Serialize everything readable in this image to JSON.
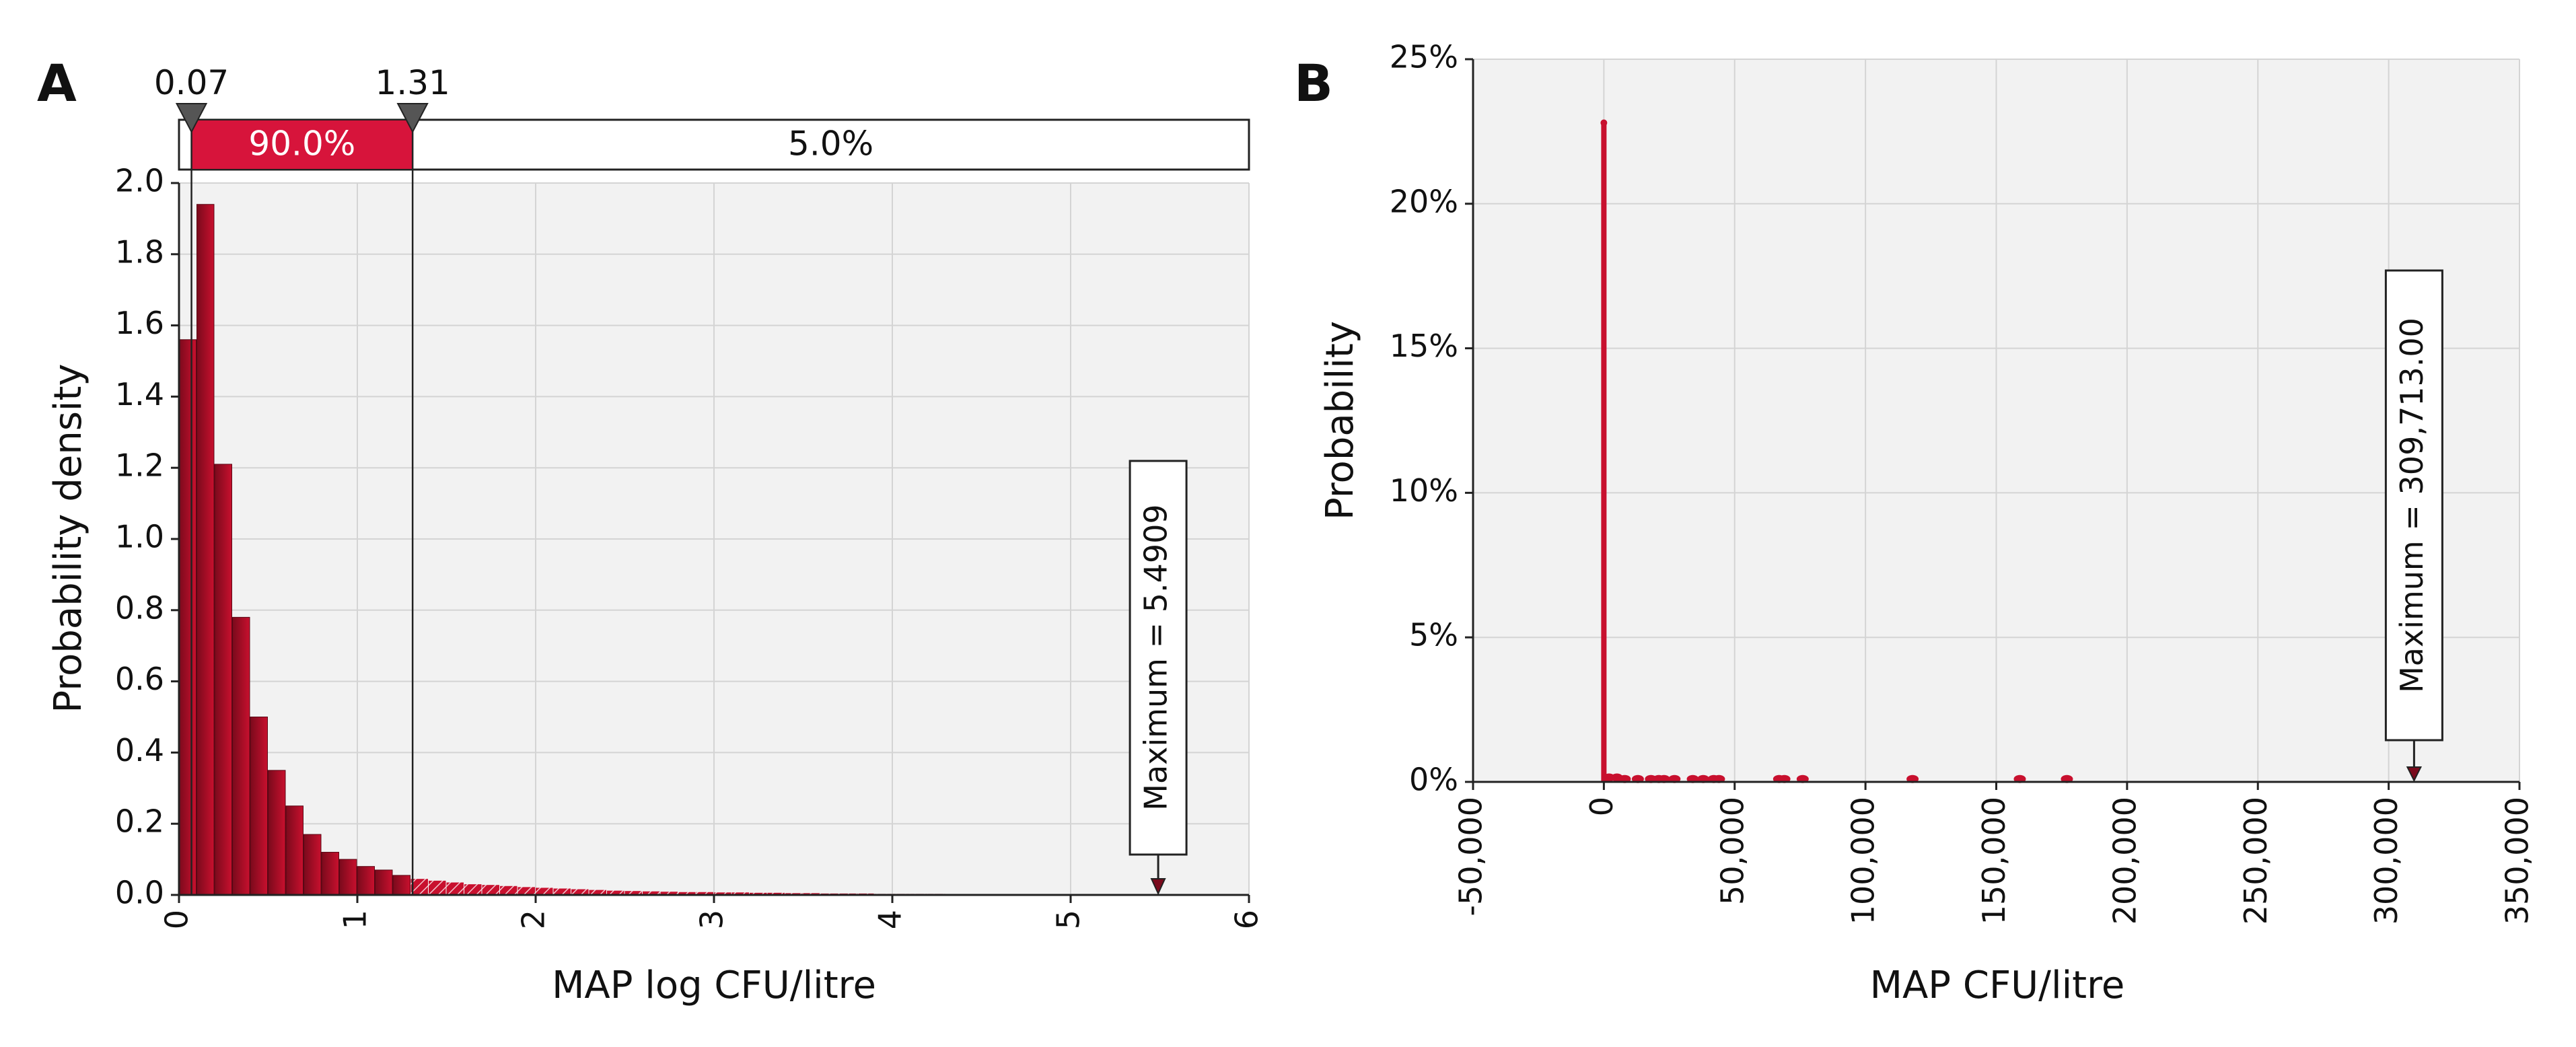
{
  "colors": {
    "bar_fill": "#c8102e",
    "bar_dark": "#7a0a1c",
    "plot_bg": "#f2f2f2",
    "grid": "#d4d4d4",
    "band_red": "#d7143b",
    "marker": "#555555"
  },
  "chart_data": [
    {
      "panel_label": "A",
      "type": "bar",
      "subtype": "histogram",
      "xlabel": "MAP log CFU/litre",
      "ylabel": "Probability density",
      "xlim": [
        0,
        6
      ],
      "ylim": [
        0,
        2.0
      ],
      "grid": true,
      "xticks": [
        "0",
        "1",
        "2",
        "3",
        "4",
        "5",
        "6"
      ],
      "yticks": [
        "0.0",
        "0.2",
        "0.4",
        "0.6",
        "0.8",
        "1.0",
        "1.2",
        "1.4",
        "1.6",
        "1.8",
        "2.0"
      ],
      "bin_width": 0.1,
      "bin_start": 0.0,
      "values": [
        1.56,
        1.94,
        1.21,
        0.78,
        0.5,
        0.35,
        0.25,
        0.17,
        0.12,
        0.1,
        0.08,
        0.07,
        0.055,
        0.045,
        0.04,
        0.035,
        0.03,
        0.028,
        0.025,
        0.022,
        0.02,
        0.018,
        0.016,
        0.014,
        0.012,
        0.011,
        0.01,
        0.009,
        0.008,
        0.008,
        0.007,
        0.007,
        0.006,
        0.006,
        0.005,
        0.005,
        0.004,
        0.004,
        0.004,
        0.003,
        0.003,
        0.003,
        0.003,
        0.002,
        0.002,
        0.002,
        0.002,
        0.002,
        0.002,
        0.001,
        0.001,
        0.001,
        0.001,
        0.001,
        0.001
      ],
      "marker_lines": [
        {
          "value": 0.07,
          "label": "0.07"
        },
        {
          "value": 1.31,
          "label": "1.31"
        }
      ],
      "percentile_band": {
        "left": "",
        "middle": "90.0%",
        "right": "5.0%"
      },
      "annotation": {
        "text": "Maximum = 5.4909",
        "x": 5.4909
      }
    },
    {
      "panel_label": "B",
      "type": "scatter",
      "subtype": "discrete probability",
      "xlabel": "MAP CFU/litre",
      "ylabel": "Probability",
      "xlim": [
        -50000,
        350000
      ],
      "ylim": [
        0,
        25
      ],
      "grid": true,
      "xticks": [
        "-50,000",
        "0",
        "50,000",
        "100,000",
        "150,000",
        "200,000",
        "250,000",
        "300,000",
        "350,000"
      ],
      "yticks": [
        "0%",
        "5%",
        "10%",
        "15%",
        "20%",
        "25%"
      ],
      "spike": {
        "x": 0,
        "y": 22.8
      },
      "points": [
        {
          "x": 2000,
          "y": 0.15
        },
        {
          "x": 5000,
          "y": 0.15
        },
        {
          "x": 8000,
          "y": 0.1
        },
        {
          "x": 13000,
          "y": 0.1
        },
        {
          "x": 18000,
          "y": 0.1
        },
        {
          "x": 21000,
          "y": 0.1
        },
        {
          "x": 23000,
          "y": 0.1
        },
        {
          "x": 27000,
          "y": 0.1
        },
        {
          "x": 34000,
          "y": 0.1
        },
        {
          "x": 38000,
          "y": 0.1
        },
        {
          "x": 42000,
          "y": 0.1
        },
        {
          "x": 44000,
          "y": 0.1
        },
        {
          "x": 67000,
          "y": 0.1
        },
        {
          "x": 69000,
          "y": 0.1
        },
        {
          "x": 76000,
          "y": 0.1
        },
        {
          "x": 118000,
          "y": 0.1
        },
        {
          "x": 159000,
          "y": 0.1
        },
        {
          "x": 177000,
          "y": 0.1
        }
      ],
      "annotation": {
        "text": "Maximum = 309,713.00",
        "x": 309713
      }
    }
  ]
}
